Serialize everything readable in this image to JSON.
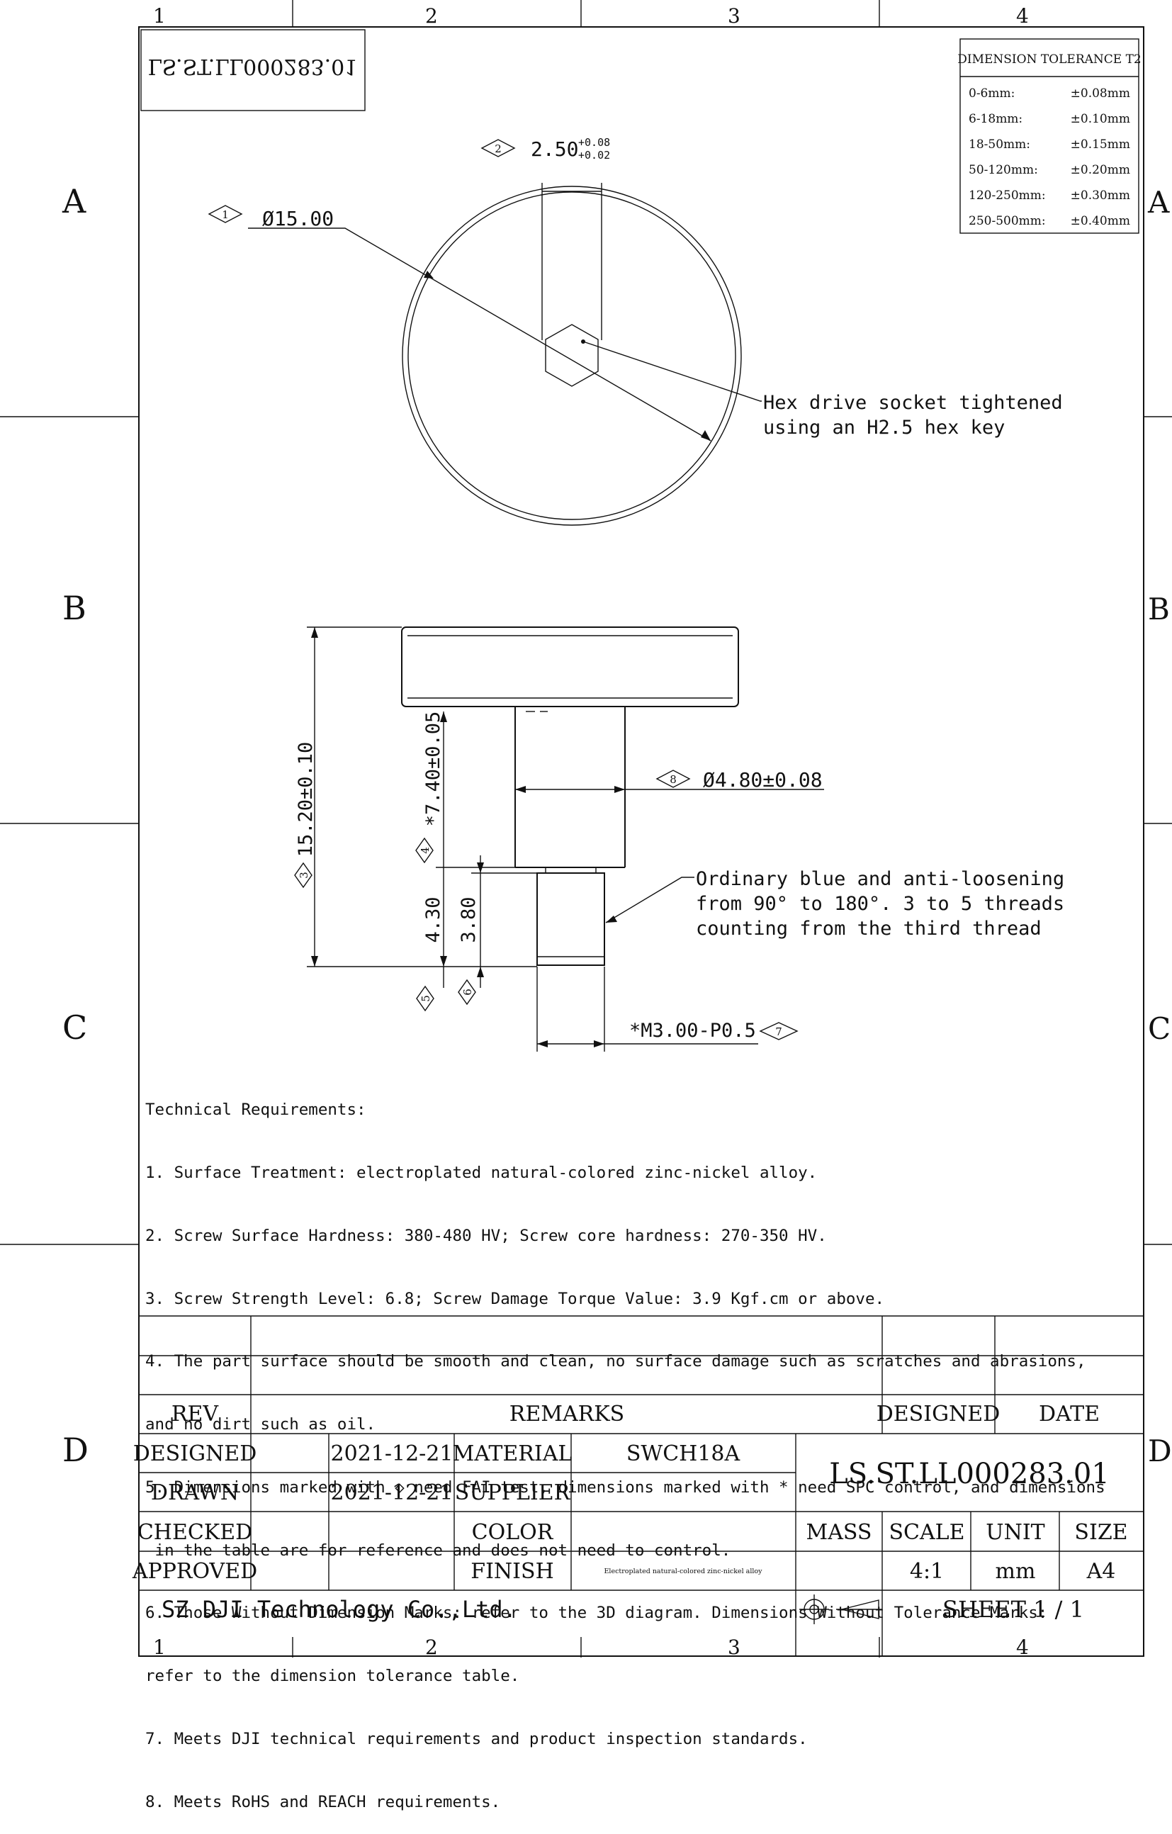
{
  "grid": {
    "columns": [
      "1",
      "2",
      "3",
      "4"
    ],
    "rows": [
      "A",
      "B",
      "C",
      "D"
    ]
  },
  "drawing_number_mirrored": "LS.ST.LL000283.01",
  "tolerance_table": {
    "title": "DIMENSION TOLERANCE T2",
    "rows": [
      {
        "range": "0-6mm:",
        "tol": "±0.08mm"
      },
      {
        "range": "6-18mm:",
        "tol": "±0.10mm"
      },
      {
        "range": "18-50mm:",
        "tol": "±0.15mm"
      },
      {
        "range": "50-120mm:",
        "tol": "±0.20mm"
      },
      {
        "range": "120-250mm:",
        "tol": "±0.30mm"
      },
      {
        "range": "250-500mm:",
        "tol": "±0.40mm"
      }
    ]
  },
  "dimensions": {
    "d1": {
      "marker": "1",
      "text": "Ø15.00"
    },
    "d2": {
      "marker": "2",
      "text": "2.50",
      "upper": "+0.08",
      "lower": "+0.02"
    },
    "d3": {
      "marker": "3",
      "text": "15.20±0.10"
    },
    "d4": {
      "marker": "4",
      "text": "*7.40±0.05"
    },
    "d5": {
      "marker": "5",
      "text": "4.30"
    },
    "d6": {
      "marker": "6",
      "text": "3.80"
    },
    "d7": {
      "marker": "7",
      "text": "*M3.00-P0.5"
    },
    "d8": {
      "marker": "8",
      "text": "Ø4.80±0.08"
    }
  },
  "notes": {
    "hex": [
      "Hex drive socket tightened",
      "using an H2.5 hex key"
    ],
    "thread": [
      "Ordinary blue and anti-loosening",
      "from 90° to 180°. 3 to 5 threads",
      "counting from the third thread"
    ]
  },
  "requirements": [
    "Technical Requirements:",
    "1. Surface Treatment: electroplated natural-colored zinc-nickel alloy.",
    "2. Screw Surface Hardness: 380-480 HV; Screw core hardness: 270-350 HV.",
    "3. Screw Strength Level: 6.8; Screw Damage Torque Value: 3.9 Kgf.cm or above.",
    "4. The part surface should be smooth and clean, no surface damage such as scratches and abrasions,",
    "and no dirt such as oil.",
    "5. Dimensions marked with ◇ need FAI test, dimensions marked with * need SPC control, and dimensions",
    " in the table are for reference and does not need to control.",
    "6. Those Without Dimension Marks: refer to the 3D diagram. Dimensions Without Tolerance Marks:",
    "refer to the dimension tolerance table.",
    "7. Meets DJI technical requirements and product inspection standards.",
    "8. Meets RoHS and REACH requirements."
  ],
  "title_block": {
    "rev_label": "REV",
    "remarks_label": "REMARKS",
    "designed_label": "DESIGNED",
    "date_label": "DATE",
    "rows": [
      {
        "label": "DESIGNED",
        "date": "2021-12-21",
        "field": "MATERIAL",
        "value": "SWCH18A"
      },
      {
        "label": "DRAWN",
        "date": "2021-12-21",
        "field": "SUPPLIER",
        "value": ""
      },
      {
        "label": "CHECKED",
        "date": "",
        "field": "COLOR",
        "value": ""
      },
      {
        "label": "APPROVED",
        "date": "",
        "field": "FINISH",
        "value": "Electroplated natural-colored zinc-nickel alloy"
      }
    ],
    "drawing_number": "LS.ST.LL000283.01",
    "mass_label": "MASS",
    "scale_label": "SCALE",
    "unit_label": "UNIT",
    "size_label": "SIZE",
    "scale": "4:1",
    "unit": "mm",
    "size": "A4",
    "company": "SZ DJI Technology Co.,Ltd.",
    "sheet": "SHEET 1 / 1"
  }
}
